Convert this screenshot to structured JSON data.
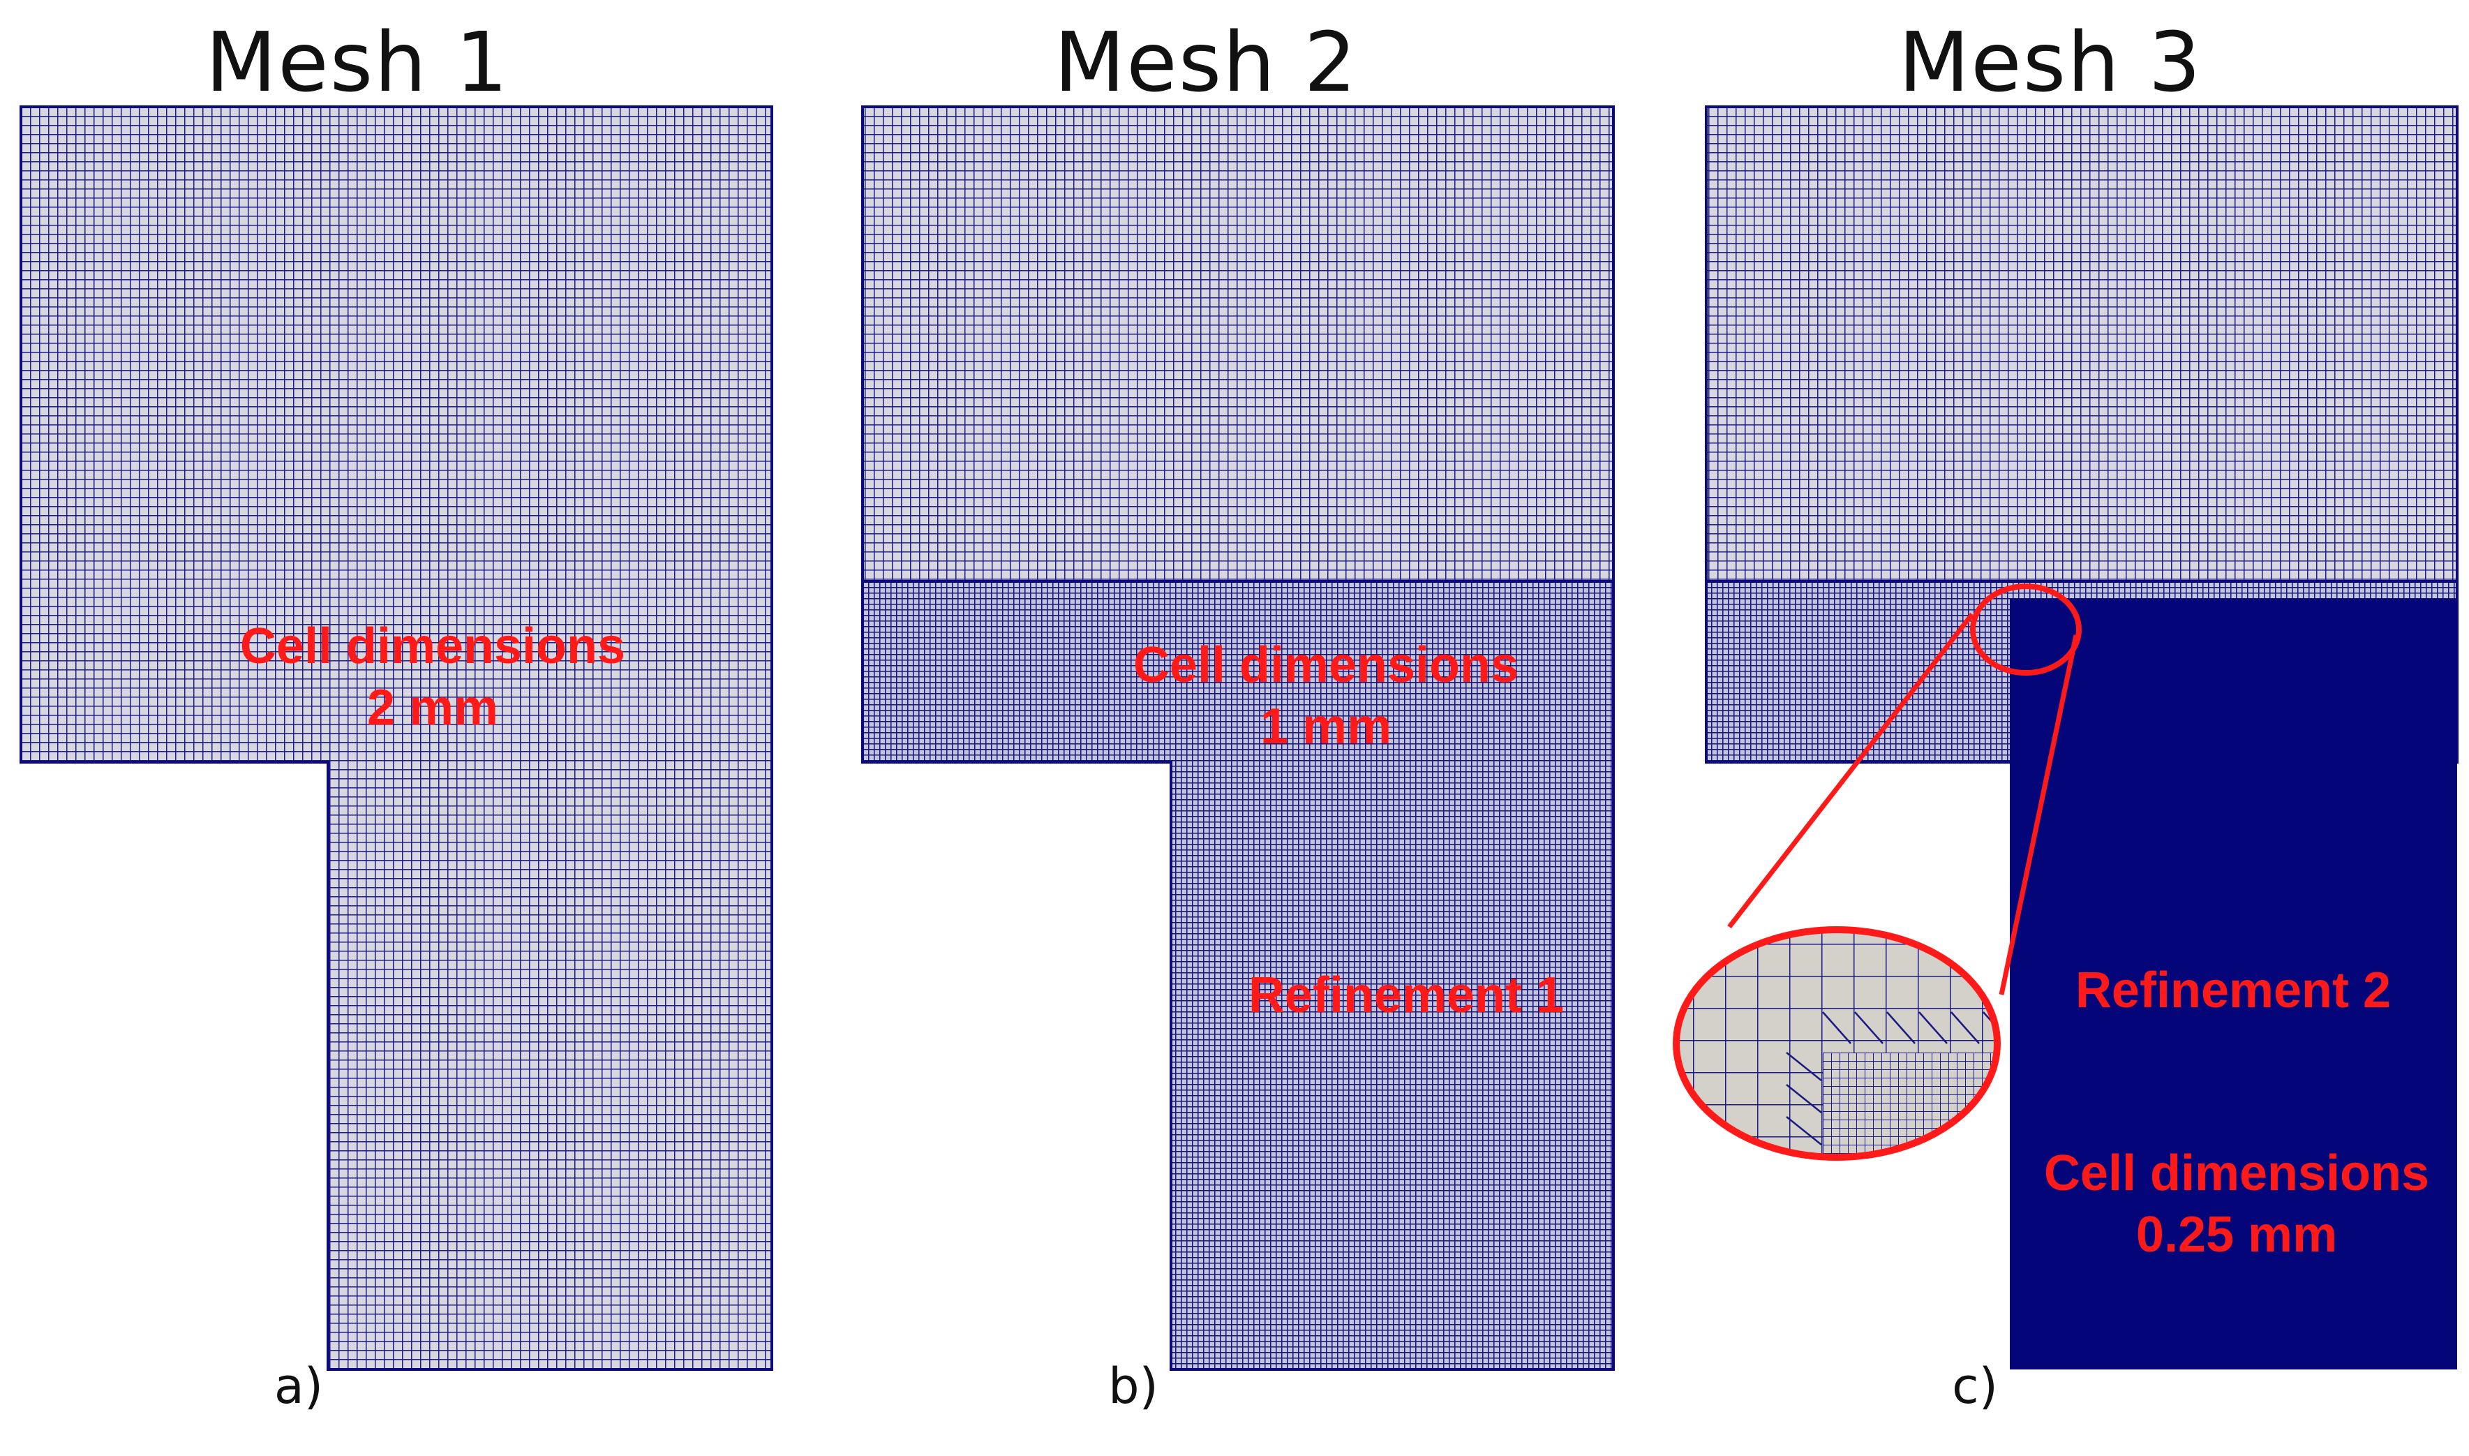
{
  "panels": [
    {
      "title": "Mesh 1",
      "sublabel": "a)",
      "texts": [
        "Cell dimensions",
        "2 mm"
      ]
    },
    {
      "title": "Mesh 2",
      "sublabel": "b)",
      "texts": [
        "Cell dimensions",
        "1 mm",
        "Refinement 1"
      ]
    },
    {
      "title": "Mesh 3",
      "sublabel": "c)",
      "texts": [
        "Refinement 2",
        "Cell dimensions",
        "0.25 mm"
      ]
    }
  ],
  "colors": {
    "mesh": "#0a0a7a",
    "annotation": "#ff1a1a",
    "cell_bg": "#d4d1cb"
  }
}
